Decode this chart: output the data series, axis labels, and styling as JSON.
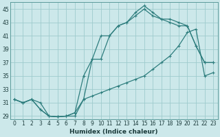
{
  "xlabel": "Humidex (Indice chaleur)",
  "background_color": "#cce8ea",
  "grid_color": "#9ecbcd",
  "line_color": "#2d7d7d",
  "xlim": [
    -0.5,
    23.5
  ],
  "ylim": [
    28.5,
    46
  ],
  "yticks": [
    29,
    31,
    33,
    35,
    37,
    39,
    41,
    43,
    45
  ],
  "xticks": [
    0,
    1,
    2,
    3,
    4,
    5,
    6,
    7,
    8,
    9,
    10,
    11,
    12,
    13,
    14,
    15,
    16,
    17,
    18,
    19,
    20,
    21,
    22,
    23
  ],
  "line1_x": [
    0,
    1,
    2,
    3,
    4,
    5,
    6,
    7,
    8,
    9,
    10,
    11,
    12,
    13,
    14,
    15,
    16,
    17,
    18,
    19,
    20,
    21,
    22,
    23
  ],
  "line1_y": [
    31.5,
    31.0,
    31.5,
    30.0,
    29.0,
    28.9,
    29.0,
    29.5,
    31.5,
    37.5,
    41.0,
    41.0,
    42.5,
    43.0,
    44.5,
    45.5,
    44.5,
    43.5,
    43.0,
    42.5,
    42.5,
    39.5,
    37.0,
    37.0
  ],
  "line2_x": [
    0,
    1,
    2,
    3,
    4,
    5,
    6,
    7,
    8,
    9,
    10,
    11,
    12,
    13,
    14,
    15,
    16,
    17,
    18,
    19,
    20,
    21,
    22,
    23
  ],
  "line2_y": [
    31.5,
    31.0,
    31.5,
    30.0,
    29.0,
    28.9,
    29.0,
    29.5,
    35.0,
    37.5,
    37.5,
    41.0,
    42.5,
    43.0,
    44.0,
    45.0,
    44.0,
    43.5,
    43.5,
    43.0,
    42.5,
    39.5,
    37.0,
    37.0
  ],
  "line3_x": [
    0,
    1,
    2,
    3,
    4,
    5,
    6,
    7,
    8,
    9,
    10,
    11,
    12,
    13,
    14,
    15,
    16,
    17,
    18,
    19,
    20,
    21,
    22,
    23
  ],
  "line3_y": [
    31.5,
    31.0,
    31.5,
    31.0,
    29.0,
    28.9,
    29.0,
    29.0,
    31.5,
    32.0,
    32.5,
    33.0,
    33.5,
    34.0,
    34.5,
    35.0,
    36.0,
    37.0,
    38.0,
    39.5,
    41.5,
    42.0,
    35.0,
    35.5
  ]
}
